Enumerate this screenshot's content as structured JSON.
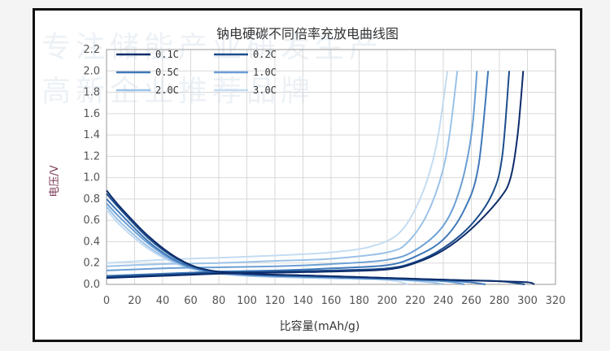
{
  "watermark": {
    "line1": "专注储能产业研发生产",
    "line2": "高新企业推荐品牌"
  },
  "chart_data": {
    "type": "line",
    "title": "钠电硬碳不同倍率充放电曲线图",
    "xlabel": "比容量(mAh/g)",
    "ylabel": "电压/V",
    "xlim": [
      0,
      320
    ],
    "ylim": [
      0.0,
      2.2
    ],
    "xticks": [
      0,
      20,
      40,
      60,
      80,
      100,
      120,
      140,
      160,
      180,
      200,
      220,
      240,
      260,
      280,
      300,
      320
    ],
    "yticks": [
      "0.0",
      "0.2",
      "0.4",
      "0.6",
      "0.8",
      "1.0",
      "1.2",
      "1.4",
      "1.6",
      "1.8",
      "2.0",
      "2.2"
    ],
    "grid": true,
    "legend_position": "top-left",
    "series": [
      {
        "name": "0.1C",
        "color": "#0d2c6b",
        "discharge": [
          [
            0,
            0.88
          ],
          [
            10,
            0.72
          ],
          [
            30,
            0.45
          ],
          [
            50,
            0.25
          ],
          [
            70,
            0.14
          ],
          [
            100,
            0.1
          ],
          [
            150,
            0.08
          ],
          [
            200,
            0.06
          ],
          [
            250,
            0.04
          ],
          [
            280,
            0.03
          ],
          [
            300,
            0.02
          ],
          [
            305,
            0.0
          ]
        ],
        "charge": [
          [
            0,
            0.06
          ],
          [
            40,
            0.08
          ],
          [
            80,
            0.1
          ],
          [
            120,
            0.11
          ],
          [
            160,
            0.12
          ],
          [
            200,
            0.14
          ],
          [
            220,
            0.2
          ],
          [
            240,
            0.32
          ],
          [
            260,
            0.52
          ],
          [
            280,
            0.8
          ],
          [
            288,
            1.0
          ],
          [
            293,
            1.4
          ],
          [
            297,
            2.0
          ]
        ]
      },
      {
        "name": "0.2C",
        "color": "#1c4d8c",
        "discharge": [
          [
            0,
            0.85
          ],
          [
            10,
            0.7
          ],
          [
            30,
            0.43
          ],
          [
            50,
            0.24
          ],
          [
            70,
            0.14
          ],
          [
            100,
            0.1
          ],
          [
            150,
            0.08
          ],
          [
            200,
            0.06
          ],
          [
            250,
            0.04
          ],
          [
            280,
            0.03
          ],
          [
            298,
            0.0
          ]
        ],
        "charge": [
          [
            0,
            0.07
          ],
          [
            40,
            0.09
          ],
          [
            80,
            0.11
          ],
          [
            120,
            0.12
          ],
          [
            160,
            0.13
          ],
          [
            200,
            0.15
          ],
          [
            220,
            0.21
          ],
          [
            240,
            0.34
          ],
          [
            260,
            0.56
          ],
          [
            275,
            0.85
          ],
          [
            282,
            1.2
          ],
          [
            287,
            2.0
          ]
        ]
      },
      {
        "name": "0.5C",
        "color": "#3f78b8",
        "discharge": [
          [
            0,
            0.8
          ],
          [
            10,
            0.66
          ],
          [
            30,
            0.4
          ],
          [
            50,
            0.22
          ],
          [
            70,
            0.13
          ],
          [
            100,
            0.09
          ],
          [
            150,
            0.07
          ],
          [
            200,
            0.05
          ],
          [
            250,
            0.03
          ],
          [
            270,
            0.0
          ]
        ],
        "charge": [
          [
            0,
            0.08
          ],
          [
            40,
            0.1
          ],
          [
            80,
            0.12
          ],
          [
            120,
            0.13
          ],
          [
            160,
            0.15
          ],
          [
            200,
            0.18
          ],
          [
            220,
            0.26
          ],
          [
            240,
            0.42
          ],
          [
            255,
            0.7
          ],
          [
            265,
            1.1
          ],
          [
            272,
            2.0
          ]
        ]
      },
      {
        "name": "1.0C",
        "color": "#6b9fd4",
        "discharge": [
          [
            0,
            0.76
          ],
          [
            10,
            0.62
          ],
          [
            30,
            0.38
          ],
          [
            50,
            0.21
          ],
          [
            70,
            0.13
          ],
          [
            100,
            0.09
          ],
          [
            150,
            0.07
          ],
          [
            200,
            0.05
          ],
          [
            240,
            0.03
          ],
          [
            255,
            0.0
          ]
        ],
        "charge": [
          [
            0,
            0.13
          ],
          [
            40,
            0.15
          ],
          [
            80,
            0.16
          ],
          [
            120,
            0.17
          ],
          [
            160,
            0.19
          ],
          [
            200,
            0.23
          ],
          [
            220,
            0.32
          ],
          [
            240,
            0.55
          ],
          [
            252,
            0.9
          ],
          [
            260,
            1.4
          ],
          [
            264,
            2.0
          ]
        ]
      },
      {
        "name": "2.0C",
        "color": "#9cc2e8",
        "discharge": [
          [
            0,
            0.73
          ],
          [
            10,
            0.58
          ],
          [
            30,
            0.35
          ],
          [
            50,
            0.2
          ],
          [
            70,
            0.12
          ],
          [
            100,
            0.08
          ],
          [
            150,
            0.06
          ],
          [
            200,
            0.05
          ],
          [
            230,
            0.02
          ],
          [
            240,
            0.0
          ]
        ],
        "charge": [
          [
            0,
            0.17
          ],
          [
            40,
            0.19
          ],
          [
            80,
            0.2
          ],
          [
            120,
            0.22
          ],
          [
            160,
            0.24
          ],
          [
            200,
            0.3
          ],
          [
            215,
            0.4
          ],
          [
            230,
            0.7
          ],
          [
            242,
            1.2
          ],
          [
            250,
            2.0
          ]
        ]
      },
      {
        "name": "3.0C",
        "color": "#c4dcf2",
        "discharge": [
          [
            0,
            0.7
          ],
          [
            10,
            0.55
          ],
          [
            30,
            0.33
          ],
          [
            50,
            0.19
          ],
          [
            70,
            0.12
          ],
          [
            100,
            0.08
          ],
          [
            150,
            0.06
          ],
          [
            200,
            0.04
          ],
          [
            215,
            0.0
          ]
        ],
        "charge": [
          [
            0,
            0.2
          ],
          [
            40,
            0.23
          ],
          [
            80,
            0.25
          ],
          [
            120,
            0.27
          ],
          [
            160,
            0.3
          ],
          [
            190,
            0.36
          ],
          [
            210,
            0.5
          ],
          [
            225,
            0.85
          ],
          [
            235,
            1.3
          ],
          [
            243,
            2.0
          ]
        ]
      }
    ]
  }
}
